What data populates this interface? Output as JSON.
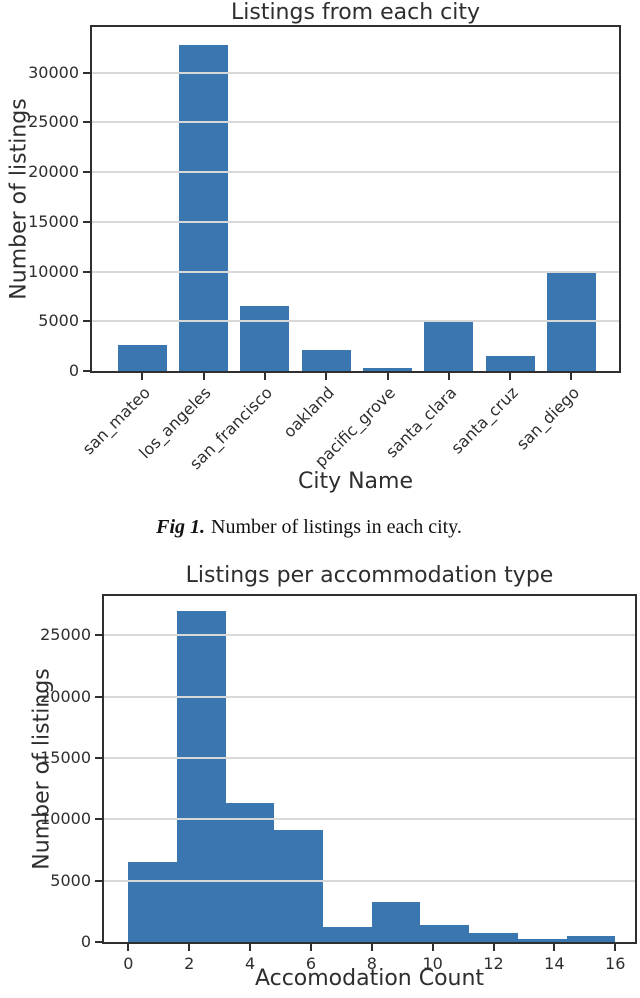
{
  "colors": {
    "bar": "#3a76b0",
    "grid": "#d8d8d8",
    "axis": "#2f2f2f",
    "text": "#2e2e2e"
  },
  "caption": {
    "fig_label": "Fig 1.",
    "text": "Number of listings in each city."
  },
  "chart_data": [
    {
      "type": "bar",
      "title": "Listings from each city",
      "xlabel": "City Name",
      "ylabel": "Number of listings",
      "categories": [
        "san_mateo",
        "los_angeles",
        "san_francisco",
        "oakland",
        "pacific_grove",
        "santa_clara",
        "santa_cruz",
        "san_diego"
      ],
      "values": [
        2600,
        32800,
        6550,
        2150,
        300,
        5000,
        1500,
        9850
      ],
      "ylim": [
        0,
        34600
      ],
      "yticks": [
        0,
        5000,
        10000,
        15000,
        20000,
        25000,
        30000
      ],
      "grid": "horizontal-on-top",
      "legend": "none",
      "bar_color": "#3a76b0",
      "x_tick_rotation": 45
    },
    {
      "type": "histogram",
      "title": "Listings per accommodation type",
      "xlabel": "Accomodation Count",
      "ylabel": "Number of listings",
      "bin_edges": [
        0,
        1.6,
        3.2,
        4.8,
        6.4,
        8.0,
        9.6,
        11.2,
        12.8,
        14.4,
        16.0
      ],
      "values": [
        6500,
        26950,
        11300,
        9100,
        1250,
        3300,
        1400,
        700,
        250,
        500
      ],
      "xlim": [
        -0.8,
        16.65
      ],
      "ylim": [
        0,
        28200
      ],
      "xticks": [
        0,
        2,
        4,
        6,
        8,
        10,
        12,
        14,
        16
      ],
      "yticks": [
        0,
        5000,
        10000,
        15000,
        20000,
        25000
      ],
      "grid": "horizontal-on-top",
      "legend": "none",
      "bar_color": "#3a76b0"
    }
  ]
}
